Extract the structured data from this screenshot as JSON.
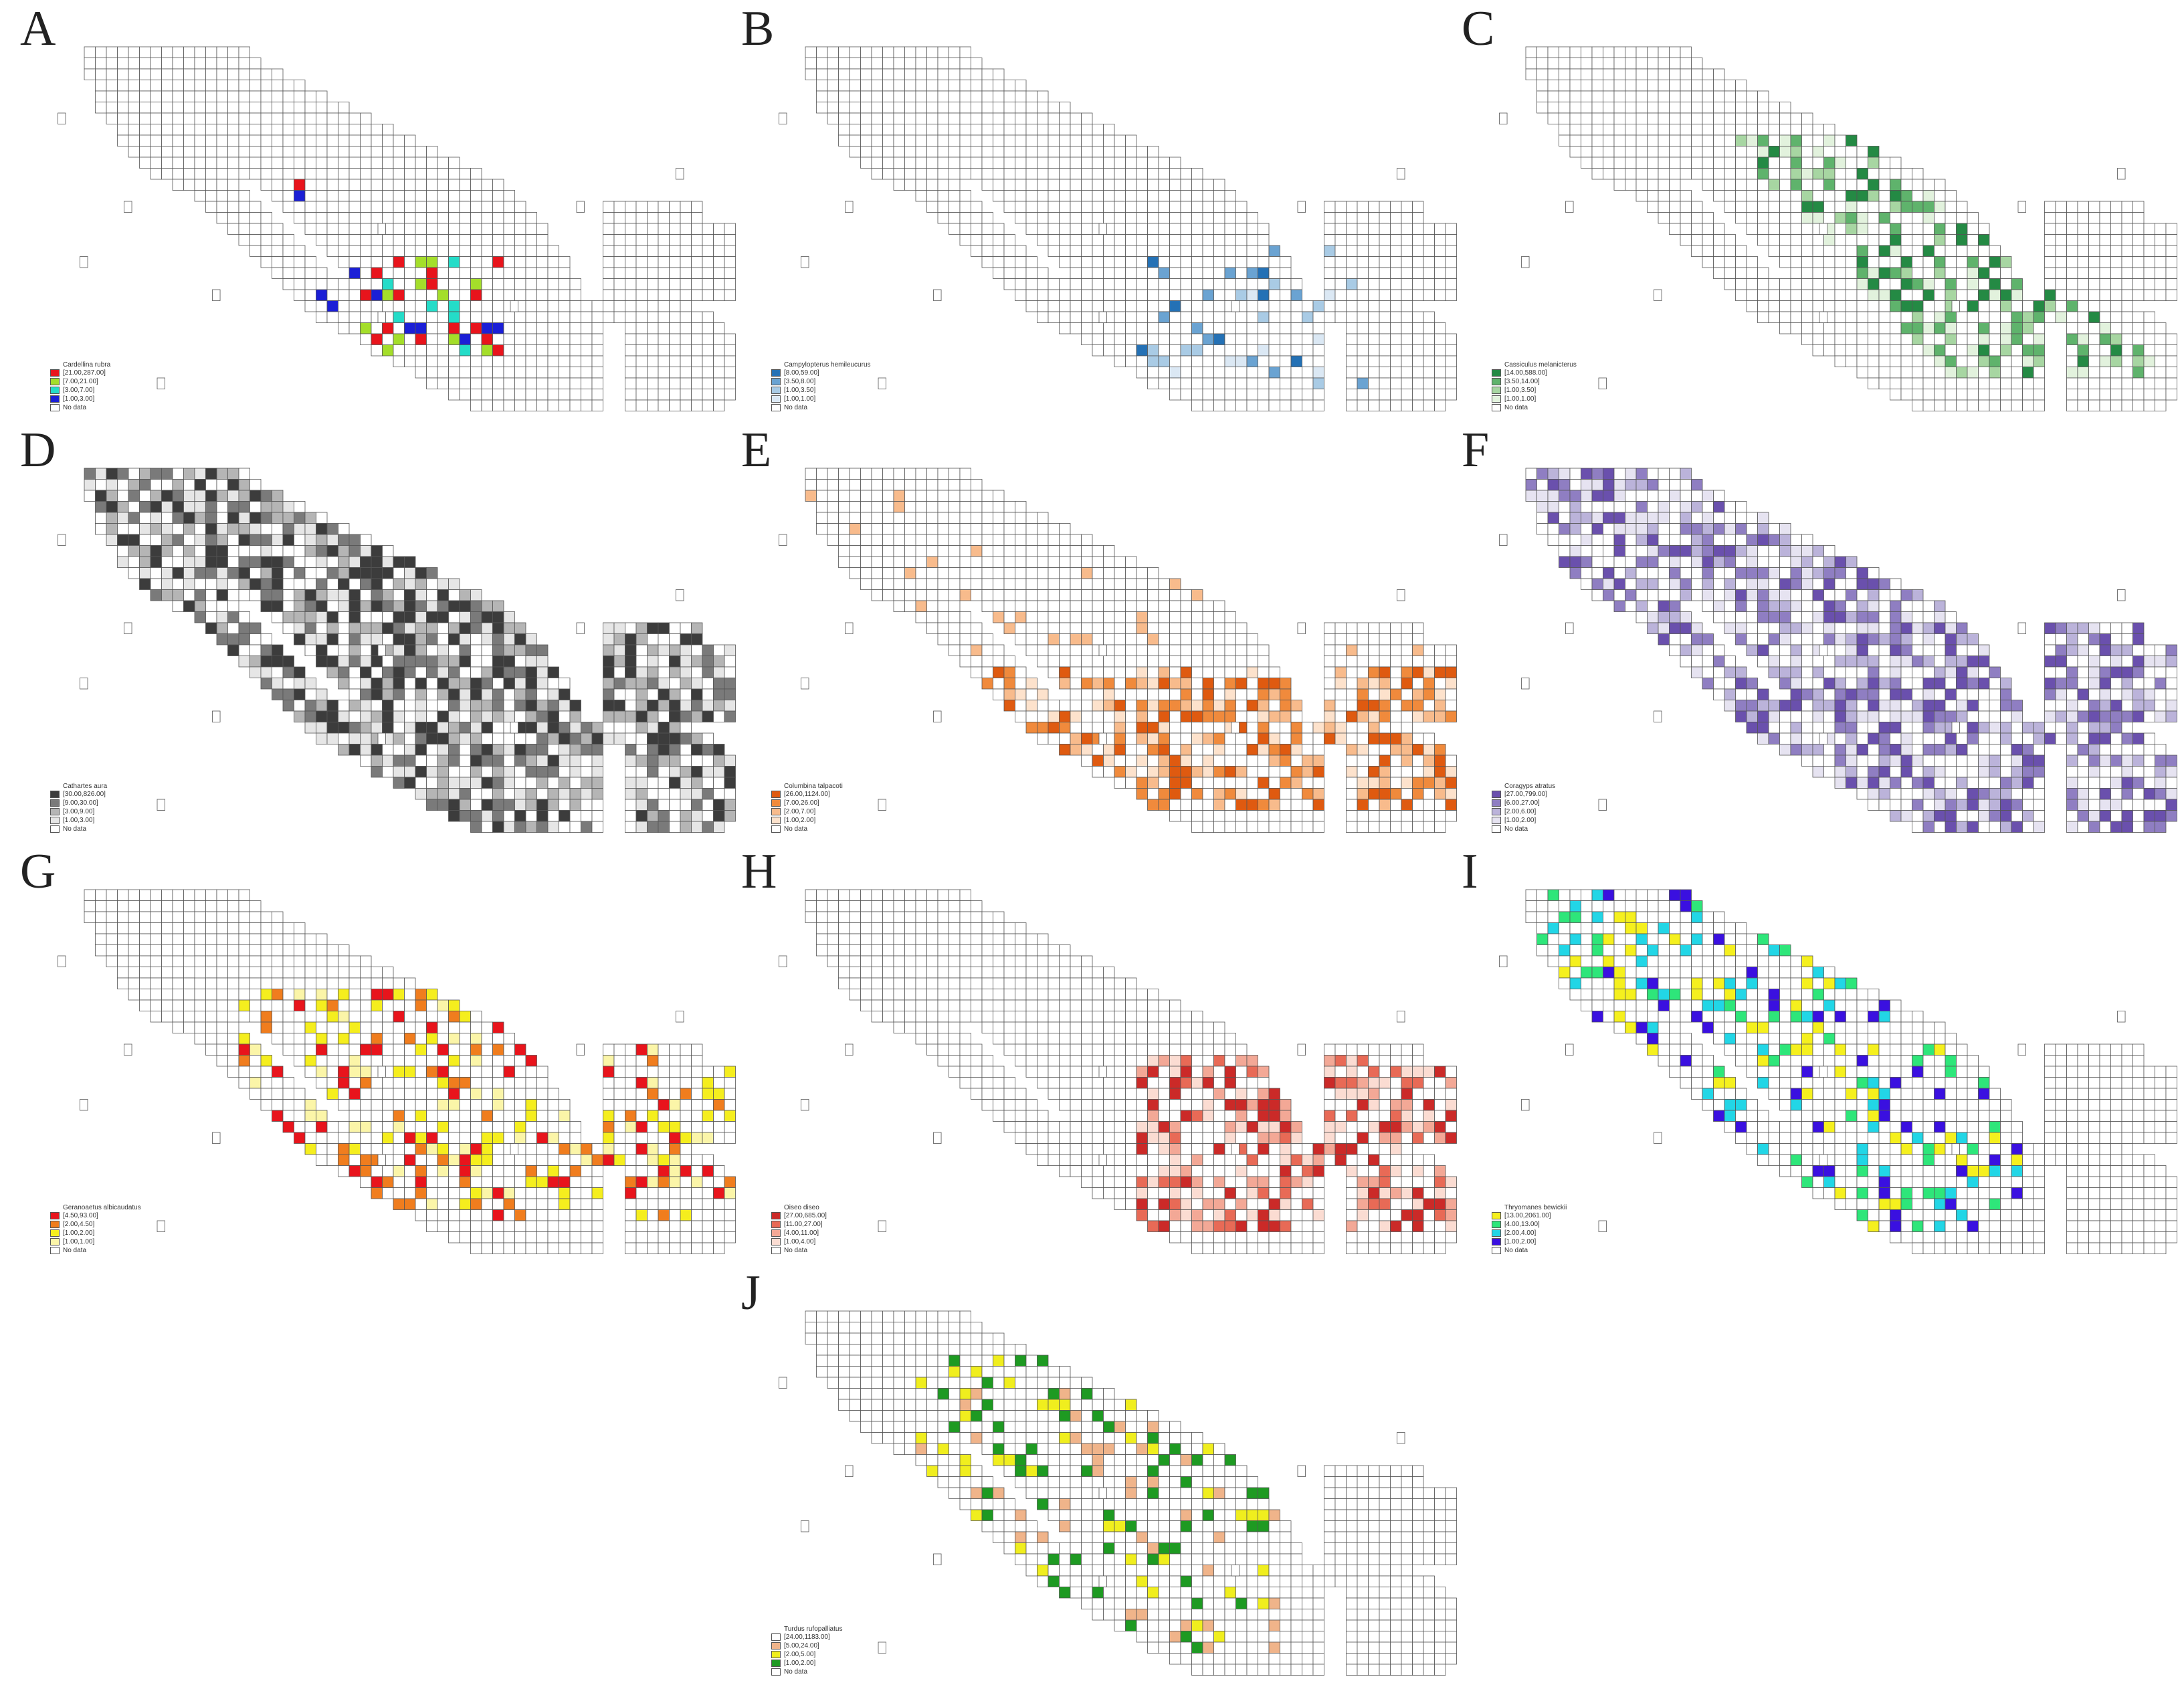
{
  "figure": {
    "no_data_label": "No data",
    "grid_color": "#555555",
    "panels": [
      {
        "letter": "A",
        "species": "Cardellina rubra",
        "scheme": "A",
        "classes": [
          "[21.00,287.00]",
          "[7.00,21.00]",
          "[3.00,7.00]",
          "[1.00,3.00]"
        ],
        "colors": [
          "#e8141c",
          "#a4de2a",
          "#24dcc8",
          "#1b1fd6"
        ]
      },
      {
        "letter": "B",
        "species": "Campylopterus hemileucurus",
        "scheme": "B",
        "classes": [
          "[8.00,59.00]",
          "[3.50,8.00]",
          "[1.00,3.50]",
          "[1.00,1.00]"
        ],
        "colors": [
          "#2471b5",
          "#6aa3d2",
          "#a9cbe5",
          "#dbe8f4"
        ]
      },
      {
        "letter": "C",
        "species": "Cassiculus melanicterus",
        "scheme": "C",
        "classes": [
          "[14.00,588.00]",
          "[3.50,14.00]",
          "[1.00,3.50]",
          "[1.00,1.00]"
        ],
        "colors": [
          "#248a44",
          "#5fb36c",
          "#a7d6a2",
          "#e2f2dd"
        ]
      },
      {
        "letter": "D",
        "species": "Cathartes aura",
        "scheme": "D",
        "classes": [
          "[30.00,826.00]",
          "[9.00,30.00]",
          "[3.00,9.00]",
          "[1.00,3.00]"
        ],
        "colors": [
          "#3c3c3c",
          "#7a7a7a",
          "#b5b5b5",
          "#e6e6e6"
        ]
      },
      {
        "letter": "E",
        "species": "Columbina talpacoti",
        "scheme": "E",
        "classes": [
          "[26.00,1124.00]",
          "[7.00,26.00]",
          "[2.00,7.00]",
          "[1.00,2.00]"
        ],
        "colors": [
          "#df5a10",
          "#f08a3c",
          "#f8bb8c",
          "#fde2cc"
        ]
      },
      {
        "letter": "F",
        "species": "Coragyps atratus",
        "scheme": "F",
        "classes": [
          "[27.00,799.00]",
          "[6.00,27.00]",
          "[2.00,6.00]",
          "[1.00,2.00]"
        ],
        "colors": [
          "#6a50ad",
          "#8f7ec2",
          "#bbb3da",
          "#e6e3f1"
        ]
      },
      {
        "letter": "G",
        "species": "Geranoaetus albicaudatus",
        "scheme": "G",
        "classes": [
          "[4.50,93.00]",
          "[2.00,4.50]",
          "[1.00,2.00]",
          "[1.00,1.00]"
        ],
        "colors": [
          "#e8141c",
          "#f07d1e",
          "#f5ee1e",
          "#fbf5a8"
        ]
      },
      {
        "letter": "H",
        "species": "Oiseo diseo",
        "scheme": "H",
        "classes": [
          "[27.00,685.00]",
          "[11.00,27.00]",
          "[4.00,11.00]",
          "[1.00,4.00]"
        ],
        "colors": [
          "#cb2a28",
          "#e86a56",
          "#f3a896",
          "#fbdcd2"
        ]
      },
      {
        "letter": "I",
        "species": "Thryomanes bewickii",
        "scheme": "I",
        "classes": [
          "[13.00,2061.00]",
          "[4.00,13.00]",
          "[2.00,4.00]",
          "[1.00,2.00]"
        ],
        "colors": [
          "#f5f01e",
          "#2ee67a",
          "#22d6e6",
          "#3a10e0"
        ]
      },
      {
        "letter": "J",
        "species": "Turdus rufopalliatus",
        "scheme": "J",
        "classes": [
          "[24.00,1183.00]",
          "[5.00,24.00]",
          "[2.00,5.00]",
          "[1.00,2.00]"
        ],
        "colors": [
          "#ffffff",
          "#f0b48a",
          "#f0ee1e",
          "#1e9a22"
        ]
      }
    ]
  }
}
